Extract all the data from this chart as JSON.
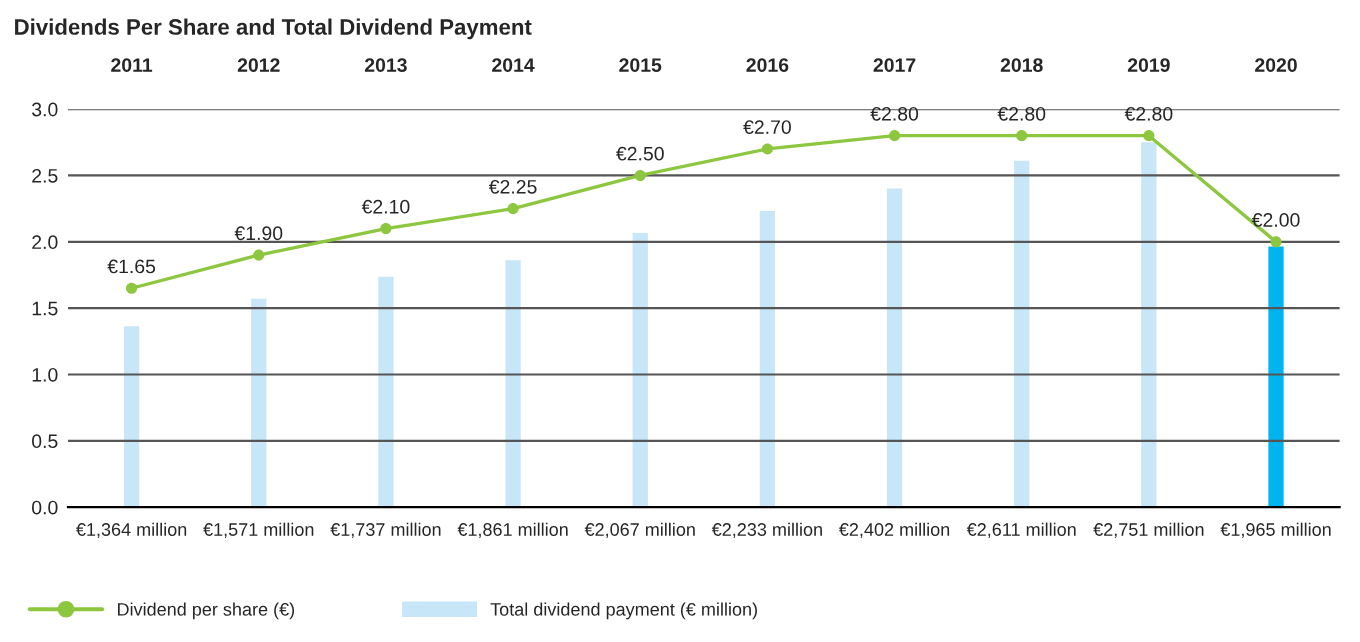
{
  "chart_data": {
    "type": "bar",
    "title": "Dividends Per Share and Total Dividend Payment",
    "categories": [
      "2011",
      "2012",
      "2013",
      "2014",
      "2015",
      "2016",
      "2017",
      "2018",
      "2019",
      "2020"
    ],
    "series": [
      {
        "name": "Total dividend payment (€ million)",
        "axis": "y2",
        "colors": [
          "#c7e6f8",
          "#c7e6f8",
          "#c7e6f8",
          "#c7e6f8",
          "#c7e6f8",
          "#c7e6f8",
          "#c7e6f8",
          "#c7e6f8",
          "#c7e6f8",
          "#00b4f0"
        ],
        "color": "#c7e6f8",
        "values": [
          1364,
          1571,
          1737,
          1861,
          2067,
          2233,
          2402,
          2611,
          2751,
          1965
        ],
        "value_labels": [
          "€1,364 million",
          "€1,571 million",
          "€1,737 million",
          "€1,861 million",
          "€2,067 million",
          "€2,233 million",
          "€2,402 million",
          "€2,611 million",
          "€2,751 million",
          "€1,965 million"
        ]
      },
      {
        "name": "Dividend per share (€)",
        "type": "line",
        "color": "#8dc63f",
        "marker": "circle",
        "values": [
          1.65,
          1.9,
          2.1,
          2.25,
          2.5,
          2.7,
          2.8,
          2.8,
          2.8,
          2.0
        ],
        "value_labels": [
          "€1.65",
          "€1.90",
          "€2.10",
          "€2.25",
          "€2.50",
          "€2.70",
          "€2.80",
          "€2.80",
          "€2.80",
          "€2.00"
        ]
      }
    ],
    "ylim": [
      0,
      3
    ],
    "yticks": [
      {
        "value": 0,
        "label": "0.0"
      },
      {
        "value": 0.5,
        "label": "0.5"
      },
      {
        "value": 1,
        "label": "1.0"
      },
      {
        "value": 1.5,
        "label": "1.5"
      },
      {
        "value": 2,
        "label": "2.0"
      },
      {
        "value": 2.5,
        "label": "2.5"
      },
      {
        "value": 3,
        "label": "3.0"
      }
    ],
    "y2lim": [
      0,
      3000
    ],
    "grid": "y",
    "legend": "bottom left"
  }
}
